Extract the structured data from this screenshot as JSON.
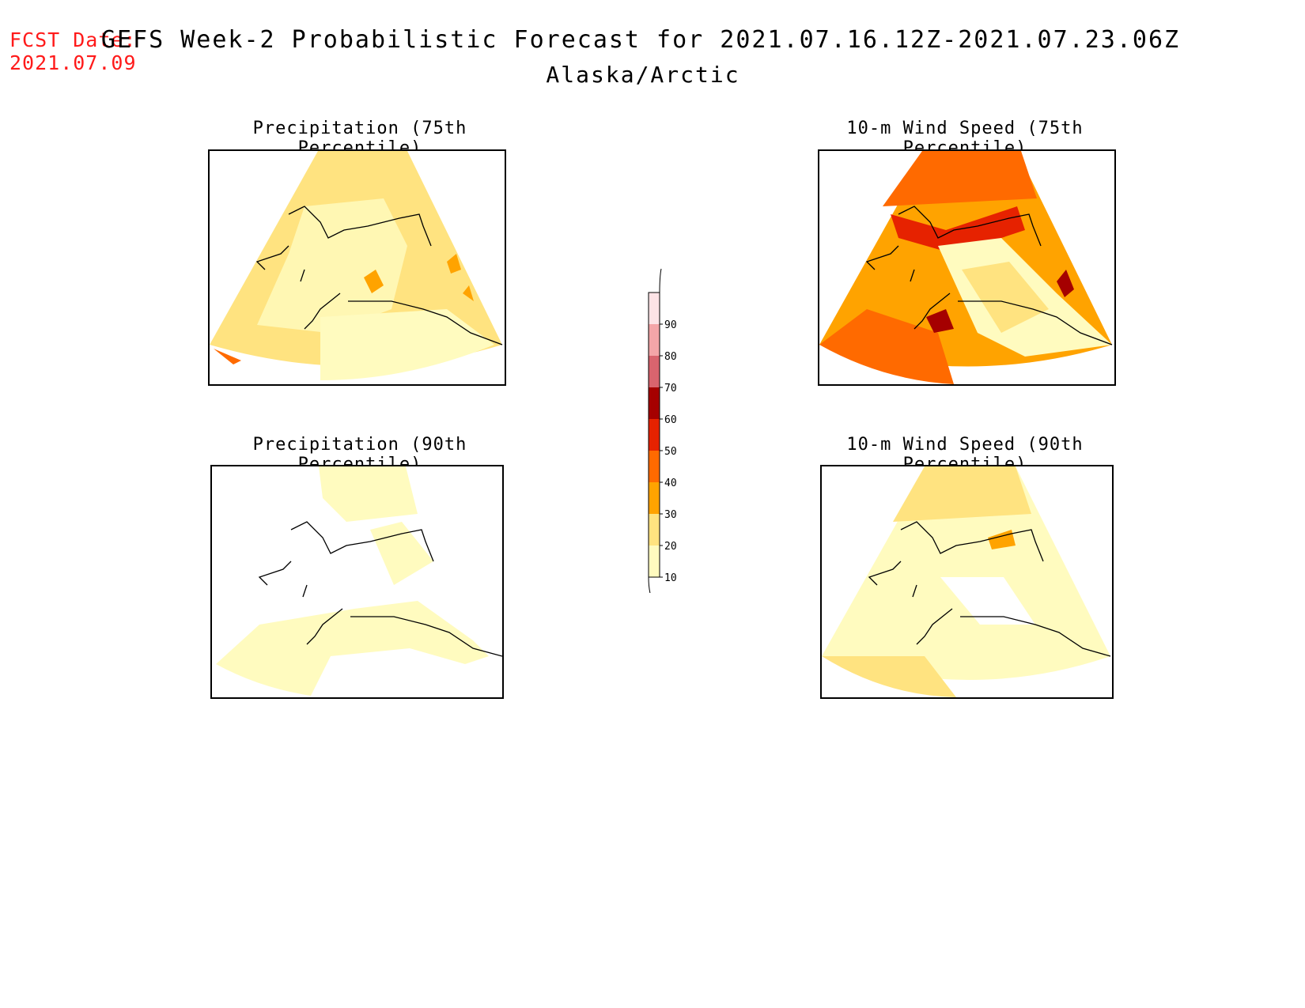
{
  "fcst_date": {
    "label": "FCST Date:",
    "value": "2021.07.09"
  },
  "title": {
    "main": "GEFS Week-2 Probabilistic Forecast for 2021.07.16.12Z-2021.07.23.06Z",
    "region": "Alaska/Arctic"
  },
  "panels": [
    {
      "title": "Precipitation (75th Percentile)",
      "level": "low-moderate"
    },
    {
      "title": "10-m Wind Speed (75th Percentile)",
      "level": "high"
    },
    {
      "title": "Precipitation (90th Percentile)",
      "level": "low"
    },
    {
      "title": "10-m Wind Speed (90th Percentile)",
      "level": "low-moderate"
    }
  ],
  "colorbar": {
    "ticks": [
      "10",
      "20",
      "30",
      "40",
      "50",
      "60",
      "70",
      "80",
      "90"
    ],
    "colors": [
      "#fffbbf",
      "#ffe380",
      "#ffa300",
      "#ff6a00",
      "#e62200",
      "#a50000",
      "#d9646e",
      "#f4a5a8",
      "#fde3e6"
    ]
  }
}
